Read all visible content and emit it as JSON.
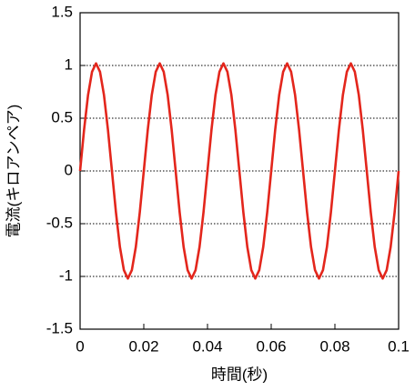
{
  "chart_data": {
    "type": "line",
    "x_label": "時間(秒)",
    "y_label": "電流(キロアンペア)",
    "x": [
      0,
      0.00125,
      0.0025,
      0.00375,
      0.005,
      0.00625,
      0.0075,
      0.00875,
      0.01,
      0.01125,
      0.0125,
      0.01375,
      0.015,
      0.01625,
      0.0175,
      0.01875,
      0.02,
      0.02125,
      0.0225,
      0.02375,
      0.025,
      0.02625,
      0.0275,
      0.02875,
      0.03,
      0.03125,
      0.0325,
      0.03375,
      0.035,
      0.03625,
      0.0375,
      0.03875,
      0.04,
      0.04125,
      0.0425,
      0.04375,
      0.045,
      0.04625,
      0.0475,
      0.04875,
      0.05,
      0.05125,
      0.0525,
      0.05375,
      0.055,
      0.05625,
      0.0575,
      0.05875,
      0.06,
      0.06125,
      0.0625,
      0.06375,
      0.065,
      0.06625,
      0.0675,
      0.06875,
      0.07,
      0.07125,
      0.0725,
      0.07375,
      0.075,
      0.07625,
      0.0775,
      0.07875,
      0.08,
      0.08125,
      0.0825,
      0.08375,
      0.085,
      0.08625,
      0.0875,
      0.08875,
      0.09,
      0.09125,
      0.0925,
      0.09375,
      0.095,
      0.09625,
      0.0975,
      0.09875,
      0.1
    ],
    "series": [
      {
        "name": "電流",
        "color": "#e3261c",
        "values": [
          0,
          0.39,
          0.72,
          0.94,
          1.02,
          0.94,
          0.72,
          0.39,
          0,
          -0.39,
          -0.72,
          -0.94,
          -1.02,
          -0.94,
          -0.72,
          -0.39,
          0,
          0.39,
          0.72,
          0.94,
          1.02,
          0.94,
          0.72,
          0.39,
          0,
          -0.39,
          -0.72,
          -0.94,
          -1.02,
          -0.94,
          -0.72,
          -0.39,
          0,
          0.39,
          0.72,
          0.94,
          1.02,
          0.94,
          0.72,
          0.39,
          0,
          -0.39,
          -0.72,
          -0.94,
          -1.02,
          -0.94,
          -0.72,
          -0.39,
          0,
          0.39,
          0.72,
          0.94,
          1.02,
          0.94,
          0.72,
          0.39,
          0,
          -0.39,
          -0.72,
          -0.94,
          -1.02,
          -0.94,
          -0.72,
          -0.39,
          0,
          0.39,
          0.72,
          0.94,
          1.02,
          0.94,
          0.72,
          0.39,
          0,
          -0.39,
          -0.72,
          -0.94,
          -1.02,
          -0.94,
          -0.72,
          -0.39,
          0
        ]
      }
    ],
    "xlim": [
      0,
      0.1
    ],
    "xticks": [
      0,
      0.02,
      0.04,
      0.06,
      0.08,
      0.1
    ],
    "ylim": [
      -1.5,
      1.5
    ],
    "yticks": [
      -1.5,
      -1,
      -0.5,
      0,
      0.5,
      1,
      1.5
    ],
    "grid": true
  }
}
